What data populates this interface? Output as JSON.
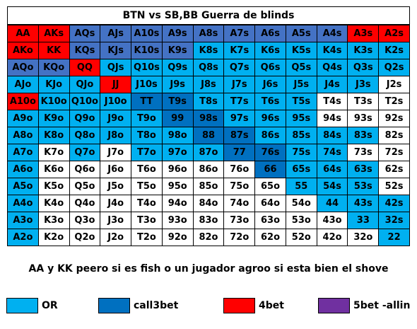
{
  "title": "BTN vs SB,BB Guerra de blinds",
  "colors": {
    "W": "#ffffff",
    "L": "#00b0f0",
    "D": "#0070c0",
    "R": "#ff0000",
    "P": "#4472c4"
  },
  "rows": [
    [
      "AA",
      "AKs",
      "AQs",
      "AJs",
      "A10s",
      "A9s",
      "A8s",
      "A7s",
      "A6s",
      "A5s",
      "A4s",
      "A3s",
      "A2s"
    ],
    [
      "AKo",
      "KK",
      "KQs",
      "KJs",
      "K10s",
      "K9s",
      "K8s",
      "K7s",
      "K6s",
      "K5s",
      "K4s",
      "K3s",
      "K2s"
    ],
    [
      "AQo",
      "KQo",
      "QQ",
      "QJs",
      "Q10s",
      "Q9s",
      "Q8s",
      "Q7s",
      "Q6s",
      "Q5s",
      "Q4s",
      "Q3s",
      "Q2s"
    ],
    [
      "AJo",
      "KJo",
      "QJo",
      "JJ",
      "J10s",
      "J9s",
      "J8s",
      "J7s",
      "J6s",
      "J5s",
      "J4s",
      "J3s",
      "J2s"
    ],
    [
      "A10o",
      "K10o",
      "Q10o",
      "J10o",
      "TT",
      "T9s",
      "T8s",
      "T7s",
      "T6s",
      "T5s",
      "T4s",
      "T3s",
      "T2s"
    ],
    [
      "A9o",
      "K9o",
      "Q9o",
      "J9o",
      "T9o",
      "99",
      "98s",
      "97s",
      "96s",
      "95s",
      "94s",
      "93s",
      "92s"
    ],
    [
      "A8o",
      "K8o",
      "Q8o",
      "J8o",
      "T8o",
      "98o",
      "88",
      "87s",
      "86s",
      "85s",
      "84s",
      "83s",
      "82s"
    ],
    [
      "A7o",
      "K7o",
      "Q7o",
      "J7o",
      "T7o",
      "97o",
      "87o",
      "77",
      "76s",
      "75s",
      "74s",
      "73s",
      "72s"
    ],
    [
      "A6o",
      "K6o",
      "Q6o",
      "J6o",
      "T6o",
      "96o",
      "86o",
      "76o",
      "66",
      "65s",
      "64s",
      "63s",
      "62s"
    ],
    [
      "A5o",
      "K5o",
      "Q5o",
      "J5o",
      "T5o",
      "95o",
      "85o",
      "75o",
      "65o",
      "55",
      "54s",
      "53s",
      "52s"
    ],
    [
      "A4o",
      "K4o",
      "Q4o",
      "J4o",
      "T4o",
      "94o",
      "84o",
      "74o",
      "64o",
      "54o",
      "44",
      "43s",
      "42s"
    ],
    [
      "A3o",
      "K3o",
      "Q3o",
      "J3o",
      "T3o",
      "93o",
      "83o",
      "73o",
      "63o",
      "53o",
      "43o",
      "33",
      "32s"
    ],
    [
      "A2o",
      "K2o",
      "Q2o",
      "J2o",
      "T2o",
      "92o",
      "82o",
      "72o",
      "62o",
      "52o",
      "42o",
      "32o",
      "22"
    ]
  ],
  "row_colors": [
    "RRPPPPPPPPPRR",
    "RRPPPPLLLLLLL",
    "PPRLLLLLLLLLL",
    "LLLRLLLLLLLLW",
    "RLLLDDLLLLWWW",
    "LLLLLDDLLLWWW",
    "LLLLLLDDLLLLW",
    "LWLWLLLDDLLWW",
    "LWWWWWWWDLLLW",
    "LWWWWWWWWLLLW",
    "LWWWWWWWWWLLL",
    "LWWWWWWWWWWLL",
    "LWWWWWWWWWWWL"
  ],
  "note": "AA y KK peero si es fish o un jugador agroo si esta bien el shove",
  "legend": [
    {
      "label": "OR",
      "color": "#00b0f0"
    },
    {
      "label": "call3bet",
      "color": "#0070c0"
    },
    {
      "label": "4bet",
      "color": "#ff0000"
    },
    {
      "label": "5bet -allin",
      "color": "#7030a0"
    }
  ]
}
